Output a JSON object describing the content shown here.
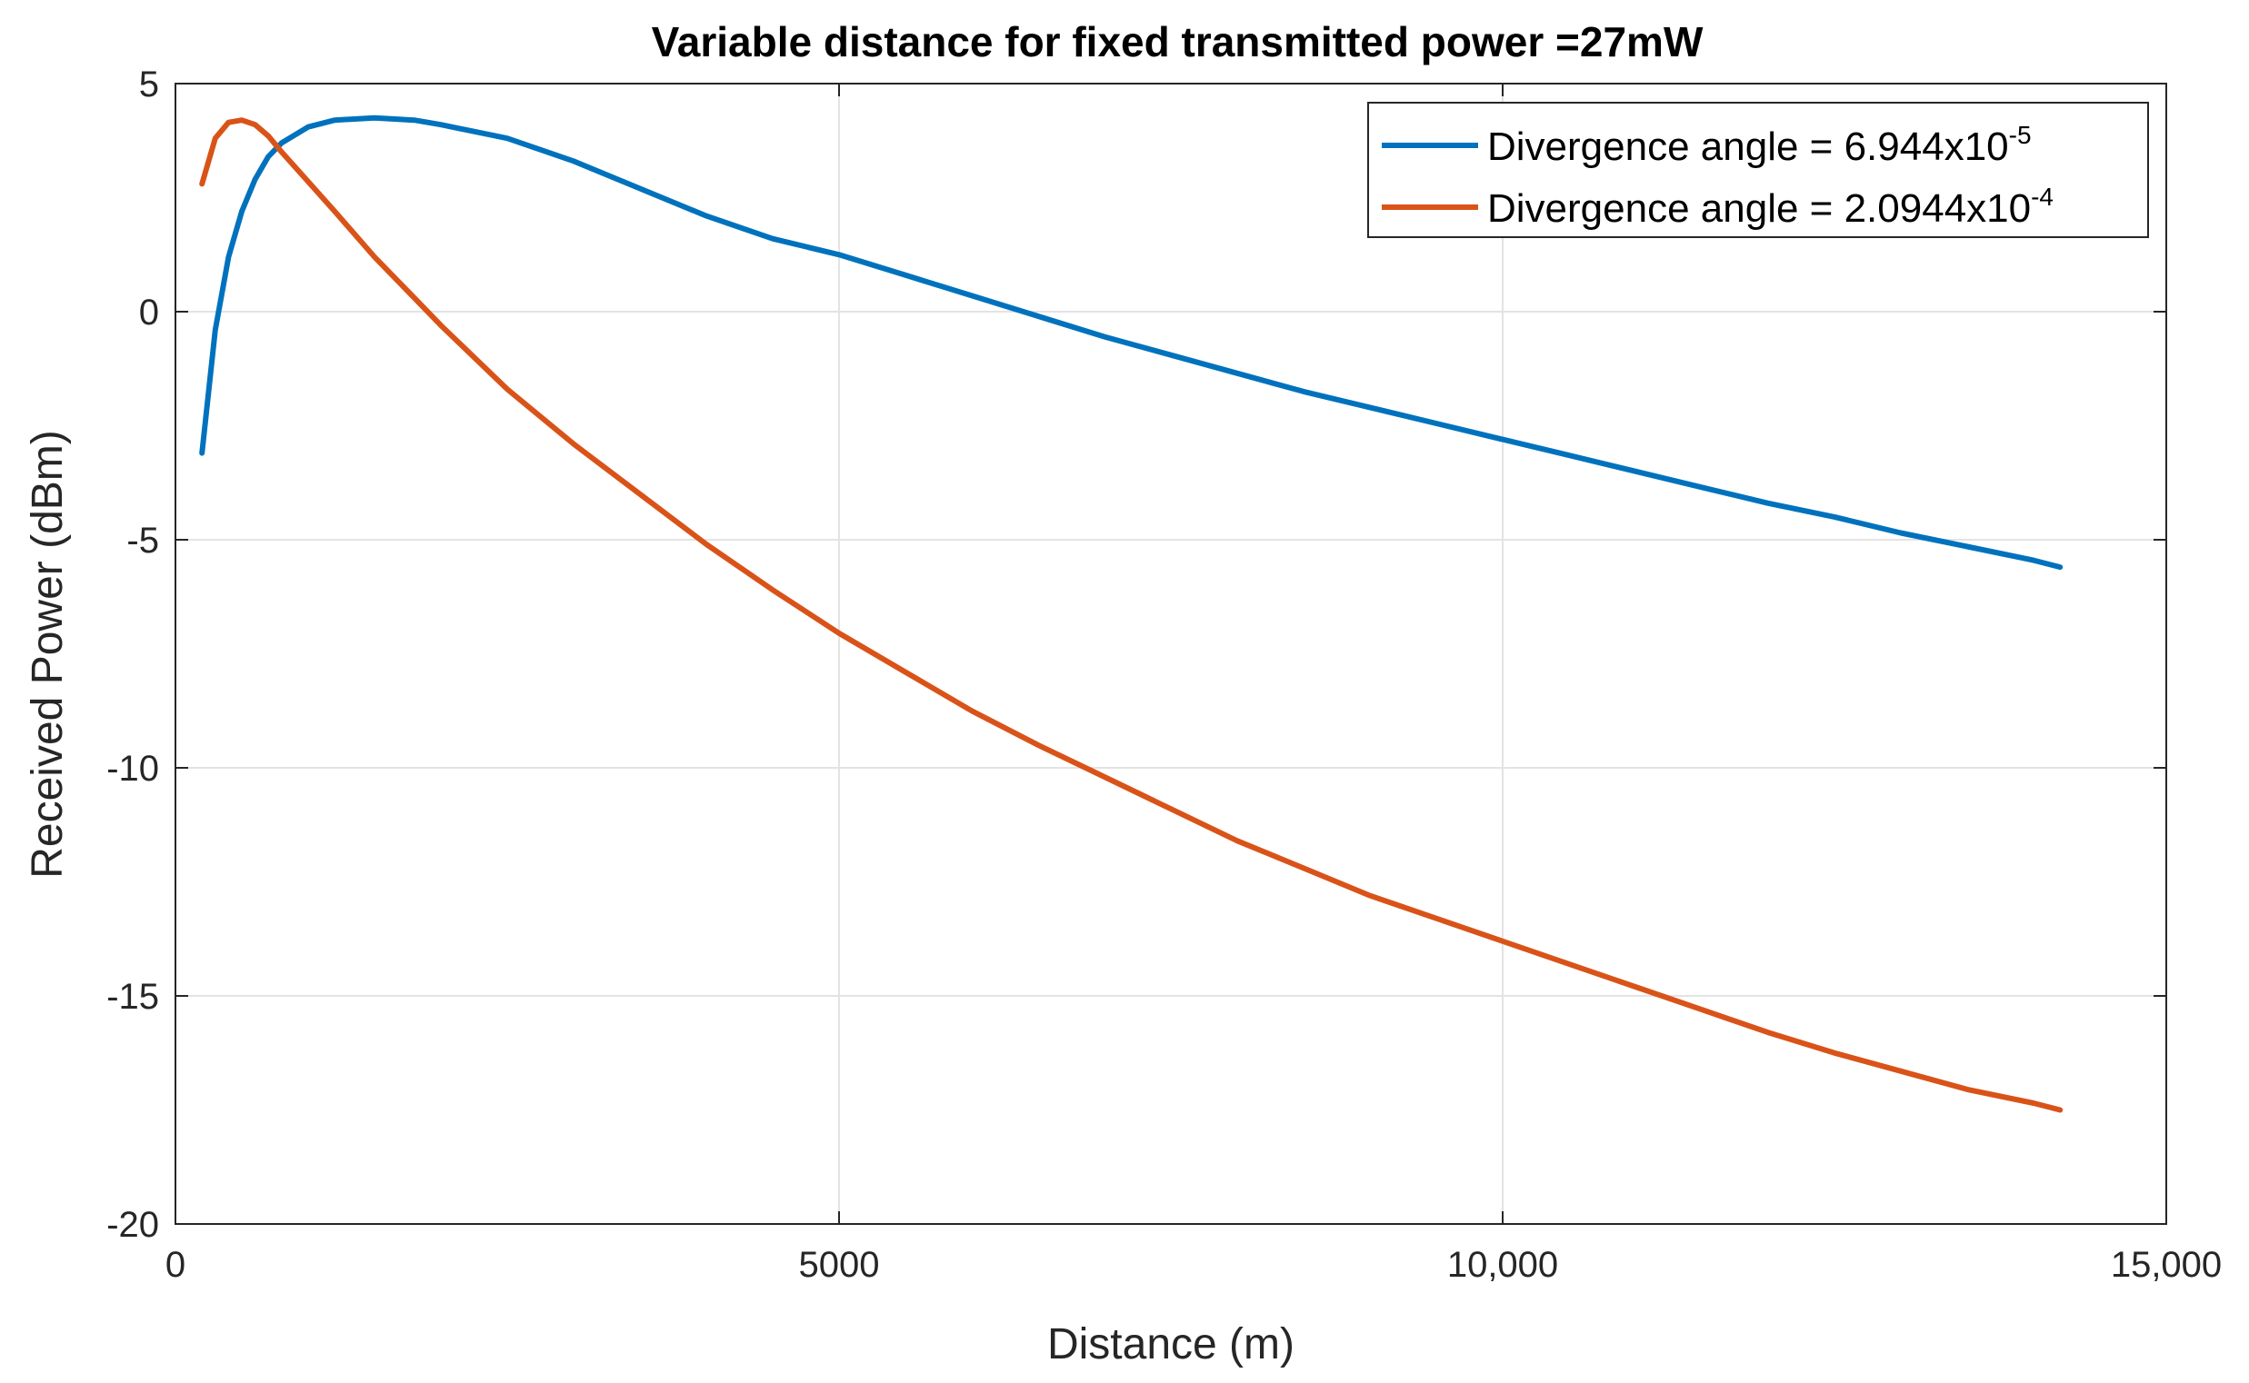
{
  "chart_data": {
    "type": "line",
    "title": "Variable distance for fixed transmitted power =27mW",
    "xlabel": "Distance (m)",
    "ylabel": "Received Power (dBm)",
    "xlim": [
      0,
      15000
    ],
    "ylim": [
      -20,
      5
    ],
    "xticks": [
      0,
      5000,
      10000,
      15000
    ],
    "xtick_labels": [
      "0",
      "5000",
      "10,000",
      "15,000"
    ],
    "yticks": [
      -20,
      -15,
      -10,
      -5,
      0,
      5
    ],
    "ytick_labels": [
      "-20",
      "-15",
      "-10",
      "-5",
      "0",
      "5"
    ],
    "grid": true,
    "legend_position": "top-right",
    "series": [
      {
        "name": "Divergence angle = 6.944x10-5",
        "legend_base": "Divergence angle = 6.944x10",
        "legend_exp": "-5",
        "color": "#0072BD",
        "x": [
          200,
          300,
          400,
          500,
          600,
          700,
          800,
          1000,
          1200,
          1500,
          1800,
          2000,
          2500,
          3000,
          3500,
          4000,
          4500,
          5000,
          5500,
          6000,
          6500,
          7000,
          7500,
          8000,
          8500,
          9000,
          9500,
          10000,
          10500,
          11000,
          11500,
          12000,
          12500,
          13000,
          13500,
          14000,
          14200
        ],
        "y": [
          -3.1,
          -0.4,
          1.2,
          2.2,
          2.9,
          3.4,
          3.7,
          4.05,
          4.2,
          4.25,
          4.2,
          4.1,
          3.8,
          3.3,
          2.7,
          2.1,
          1.6,
          1.25,
          0.8,
          0.35,
          -0.1,
          -0.55,
          -0.95,
          -1.35,
          -1.75,
          -2.1,
          -2.45,
          -2.8,
          -3.15,
          -3.5,
          -3.85,
          -4.2,
          -4.5,
          -4.85,
          -5.15,
          -5.45,
          -5.6
        ]
      },
      {
        "name": "Divergence angle = 2.0944x10-4",
        "legend_base": "Divergence angle = 2.0944x10",
        "legend_exp": "-4",
        "color": "#D95319",
        "x": [
          200,
          300,
          400,
          500,
          600,
          700,
          800,
          1000,
          1200,
          1500,
          1800,
          2000,
          2500,
          3000,
          3500,
          4000,
          4500,
          5000,
          5500,
          6000,
          6500,
          7000,
          7500,
          8000,
          8500,
          9000,
          9500,
          10000,
          10500,
          11000,
          11500,
          12000,
          12500,
          13000,
          13500,
          14000,
          14200
        ],
        "y": [
          2.8,
          3.8,
          4.15,
          4.2,
          4.1,
          3.85,
          3.5,
          2.85,
          2.2,
          1.2,
          0.3,
          -0.3,
          -1.7,
          -2.9,
          -4.0,
          -5.1,
          -6.1,
          -7.05,
          -7.9,
          -8.75,
          -9.5,
          -10.2,
          -10.9,
          -11.6,
          -12.2,
          -12.8,
          -13.3,
          -13.8,
          -14.3,
          -14.8,
          -15.3,
          -15.8,
          -16.25,
          -16.65,
          -17.05,
          -17.35,
          -17.5
        ]
      }
    ]
  }
}
